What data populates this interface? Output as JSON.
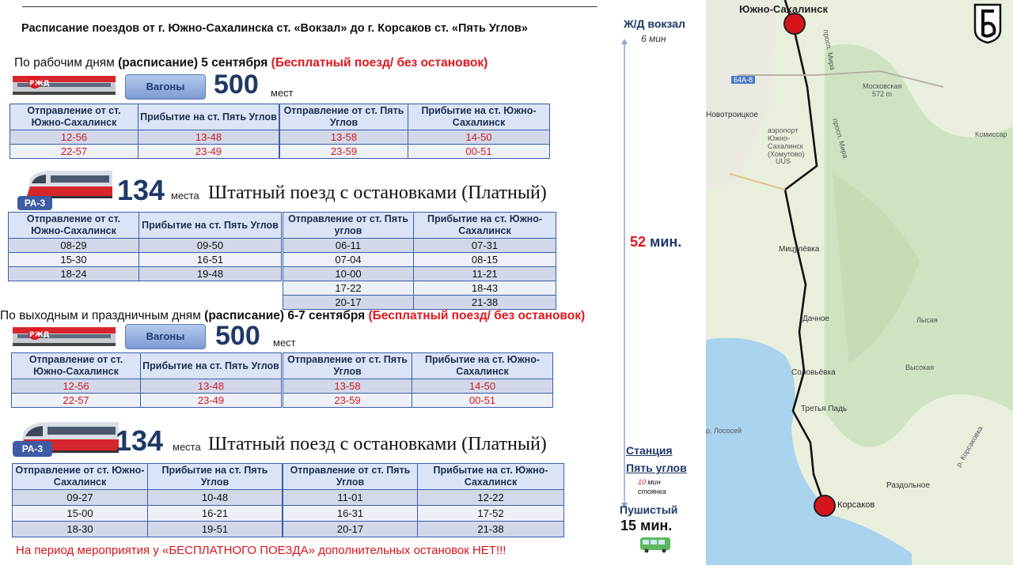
{
  "title": "Расписание поездов от г. Южно-Сахалинска ст. «Вокзал»  до г. Корсаков ст. «Пять Углов»",
  "colors": {
    "accent": "#1f3866",
    "red": "#e0161e",
    "table_border": "#3a5ea9",
    "header_bg": "#dae4f6"
  },
  "weekday": {
    "prefix": "По рабочим дням ",
    "bold": "(расписание) 5 сентября",
    "red": "(Бесплатный поезд/ без остановок)",
    "free": {
      "wagons_label": "Вагоны",
      "seats": "500",
      "seats_unit": "мест",
      "to_headers": [
        "Отправление от ст.  Южно-Сахалинск",
        "Прибытие на ст. Пять Углов"
      ],
      "from_headers": [
        "Отправление от ст. Пять Углов",
        "Прибытие на ст.  Южно-Сахалинск"
      ],
      "to_rows": [
        [
          "12-56",
          "13-48"
        ],
        [
          "22-57",
          "23-49"
        ]
      ],
      "from_rows": [
        [
          "13-58",
          "14-50"
        ],
        [
          "23-59",
          "00-51"
        ]
      ]
    },
    "paid": {
      "train_label": "РА-3",
      "seats": "134",
      "seats_unit": "места",
      "desc": "Штатный поезд с остановками (Платный)",
      "to_headers": [
        "Отправление от ст.  Южно-Сахалинск",
        "Прибытие на ст. Пять Углов"
      ],
      "from_headers": [
        "Отправление от ст. Пять углов",
        "Прибытие на ст.  Южно-Сахалинск"
      ],
      "to_rows": [
        [
          "08-29",
          "09-50"
        ],
        [
          "15-30",
          "16-51"
        ],
        [
          "18-24",
          "19-48"
        ]
      ],
      "from_rows": [
        [
          "06-11",
          "07-31"
        ],
        [
          "07-04",
          "08-15"
        ],
        [
          "10-00",
          "11-21"
        ],
        [
          "17-22",
          "18-43"
        ],
        [
          "20-17",
          "21-38"
        ]
      ]
    }
  },
  "weekend": {
    "prefix": "По выходным и праздничным дням ",
    "bold": "(расписание) 6-7 сентября",
    "red": "(Бесплатный поезд/ без остановок)",
    "free": {
      "wagons_label": "Вагоны",
      "seats": "500",
      "seats_unit": "мест",
      "to_headers": [
        "Отправление от ст.  Южно-Сахалинск",
        "Прибытие на ст. Пять Углов"
      ],
      "from_headers": [
        "Отправление от ст. Пять Углов",
        "Прибытие на ст.  Южно-Сахалинск"
      ],
      "to_rows": [
        [
          "12-56",
          "13-48"
        ],
        [
          "22-57",
          "23-49"
        ]
      ],
      "from_rows": [
        [
          "13-58",
          "14-50"
        ],
        [
          "23-59",
          "00-51"
        ]
      ]
    },
    "paid": {
      "train_label": "РА-3",
      "seats": "134",
      "seats_unit": "места",
      "desc": "Штатный поезд с остановками (Платный)",
      "to_headers": [
        "Отправление от ст.  Южно-Сахалинск",
        "Прибытие на ст. Пять Углов"
      ],
      "from_headers": [
        "Отправление от ст. Пять Углов",
        "Прибытие на ст.  Южно-Сахалинск"
      ],
      "to_rows": [
        [
          "09-27",
          "10-48"
        ],
        [
          "15-00",
          "16-21"
        ],
        [
          "18-30",
          "19-51"
        ]
      ],
      "from_rows": [
        [
          "11-01",
          "12-22"
        ],
        [
          "16-31",
          "17-52"
        ],
        [
          "20-17",
          "21-38"
        ]
      ]
    }
  },
  "note": "На период мероприятия у «БЕСПЛАТНОГО ПОЕЗДА» дополнительных остановок НЕТ!!!",
  "route": {
    "station_top": "Ж/Д вокзал",
    "top_time": "6 мин",
    "duration_num": "52",
    "duration_unit": " мин.",
    "station_bottom_1": "Станция",
    "station_bottom_2": "Пять углов",
    "stop_minutes": "10",
    "stop_unit": " мин",
    "stop_word": "стоянка",
    "bus_stop": "Пушистый",
    "bus_time": "15 мин."
  },
  "map": {
    "labels": [
      "Южно-Сахалинск",
      "просп. Мира",
      "64А-8",
      "Московская",
      "572 m",
      "Новотроицкое",
      "аэропорт",
      "Южно-",
      "Сахалинск",
      "(Хомутово)",
      "UUS",
      "просп. Мира",
      "Комиссар",
      "Мицулёвка",
      "Дачное",
      "Лысая",
      "Соловьёвка",
      "Высокая",
      "Третья Падь",
      "р. Лососей",
      "р. Корсаковка",
      "Раздольное",
      "Корсаков"
    ]
  }
}
